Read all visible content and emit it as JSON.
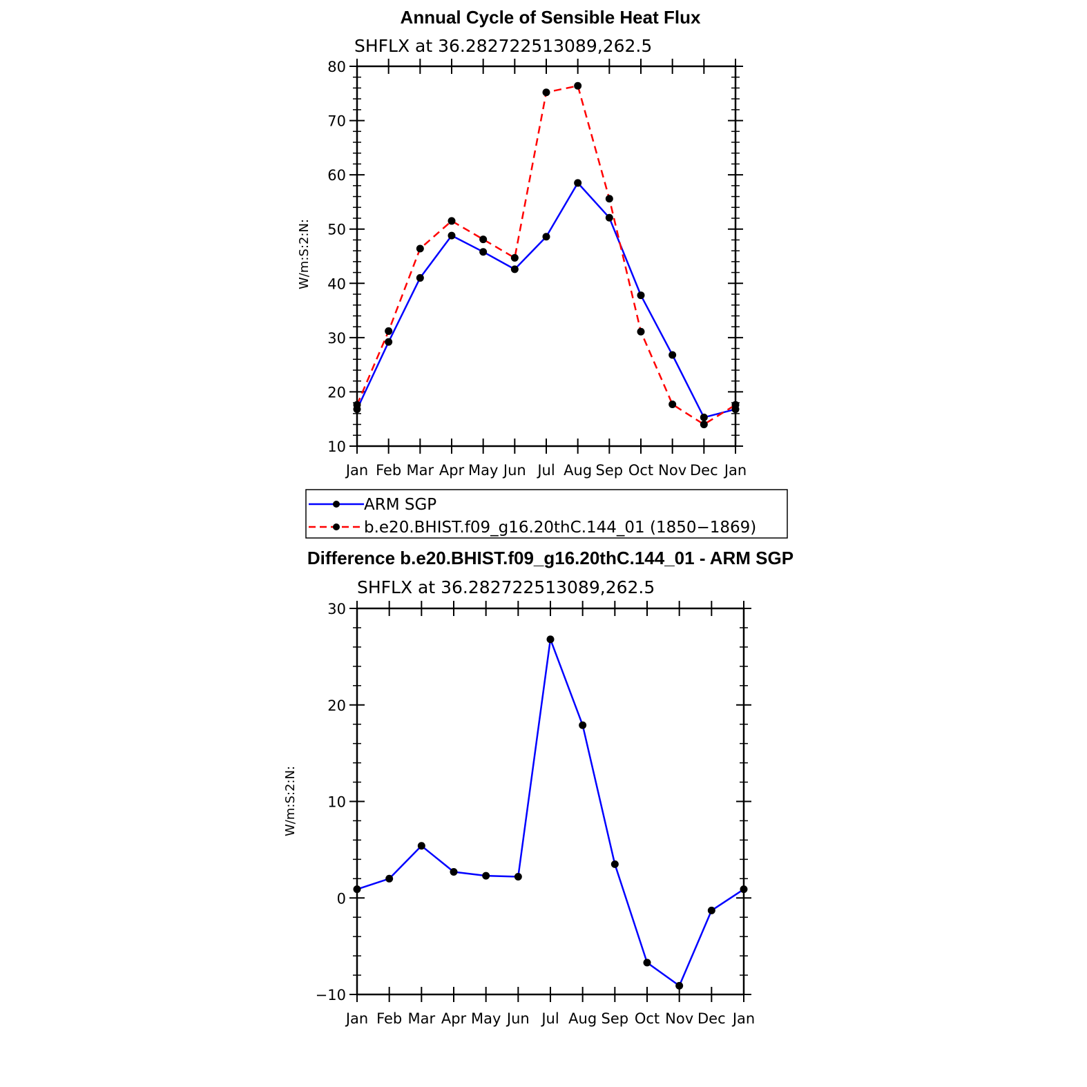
{
  "chart_data": [
    {
      "type": "line",
      "title": "Annual Cycle of Sensible Heat Flux",
      "subtitle": "SHFLX at 36.282722513089,262.5",
      "ylabel": "W/m:S:2:N:",
      "ylim": [
        10,
        80
      ],
      "yticks": [
        "10",
        "20",
        "30",
        "40",
        "50",
        "60",
        "70",
        "80"
      ],
      "categories": [
        "Jan",
        "Feb",
        "Mar",
        "Apr",
        "May",
        "Jun",
        "Jul",
        "Aug",
        "Sep",
        "Oct",
        "Nov",
        "Dec",
        "Jan"
      ],
      "series": [
        {
          "name": "ARM SGP",
          "color": "#0000ff",
          "dash": false,
          "values": [
            16.8,
            29.2,
            41.0,
            48.8,
            45.8,
            42.6,
            48.6,
            58.5,
            52.1,
            37.8,
            26.8,
            15.3,
            16.8
          ]
        },
        {
          "name": "b.e20.BHIST.f09_g16.20thC.144_01 (1850−1869)",
          "color": "#ff0000",
          "dash": true,
          "values": [
            17.6,
            31.2,
            46.4,
            51.5,
            48.1,
            44.7,
            75.2,
            76.4,
            55.6,
            31.1,
            17.7,
            14.0,
            17.6
          ]
        }
      ]
    },
    {
      "type": "line",
      "title": "Difference b.e20.BHIST.f09_g16.20thC.144_01 - ARM SGP",
      "subtitle": "SHFLX at 36.282722513089,262.5",
      "ylabel": "W/m:S:2:N:",
      "ylim": [
        -10,
        30
      ],
      "yticks": [
        "−10",
        "0",
        "10",
        "20",
        "30"
      ],
      "categories": [
        "Jan",
        "Feb",
        "Mar",
        "Apr",
        "May",
        "Jun",
        "Jul",
        "Aug",
        "Sep",
        "Oct",
        "Nov",
        "Dec",
        "Jan"
      ],
      "series": [
        {
          "name": "Difference",
          "color": "#0000ff",
          "dash": false,
          "values": [
            0.9,
            2.0,
            5.4,
            2.7,
            2.3,
            2.2,
            26.8,
            17.9,
            3.5,
            -6.7,
            -9.1,
            -1.3,
            0.9
          ]
        }
      ]
    }
  ]
}
